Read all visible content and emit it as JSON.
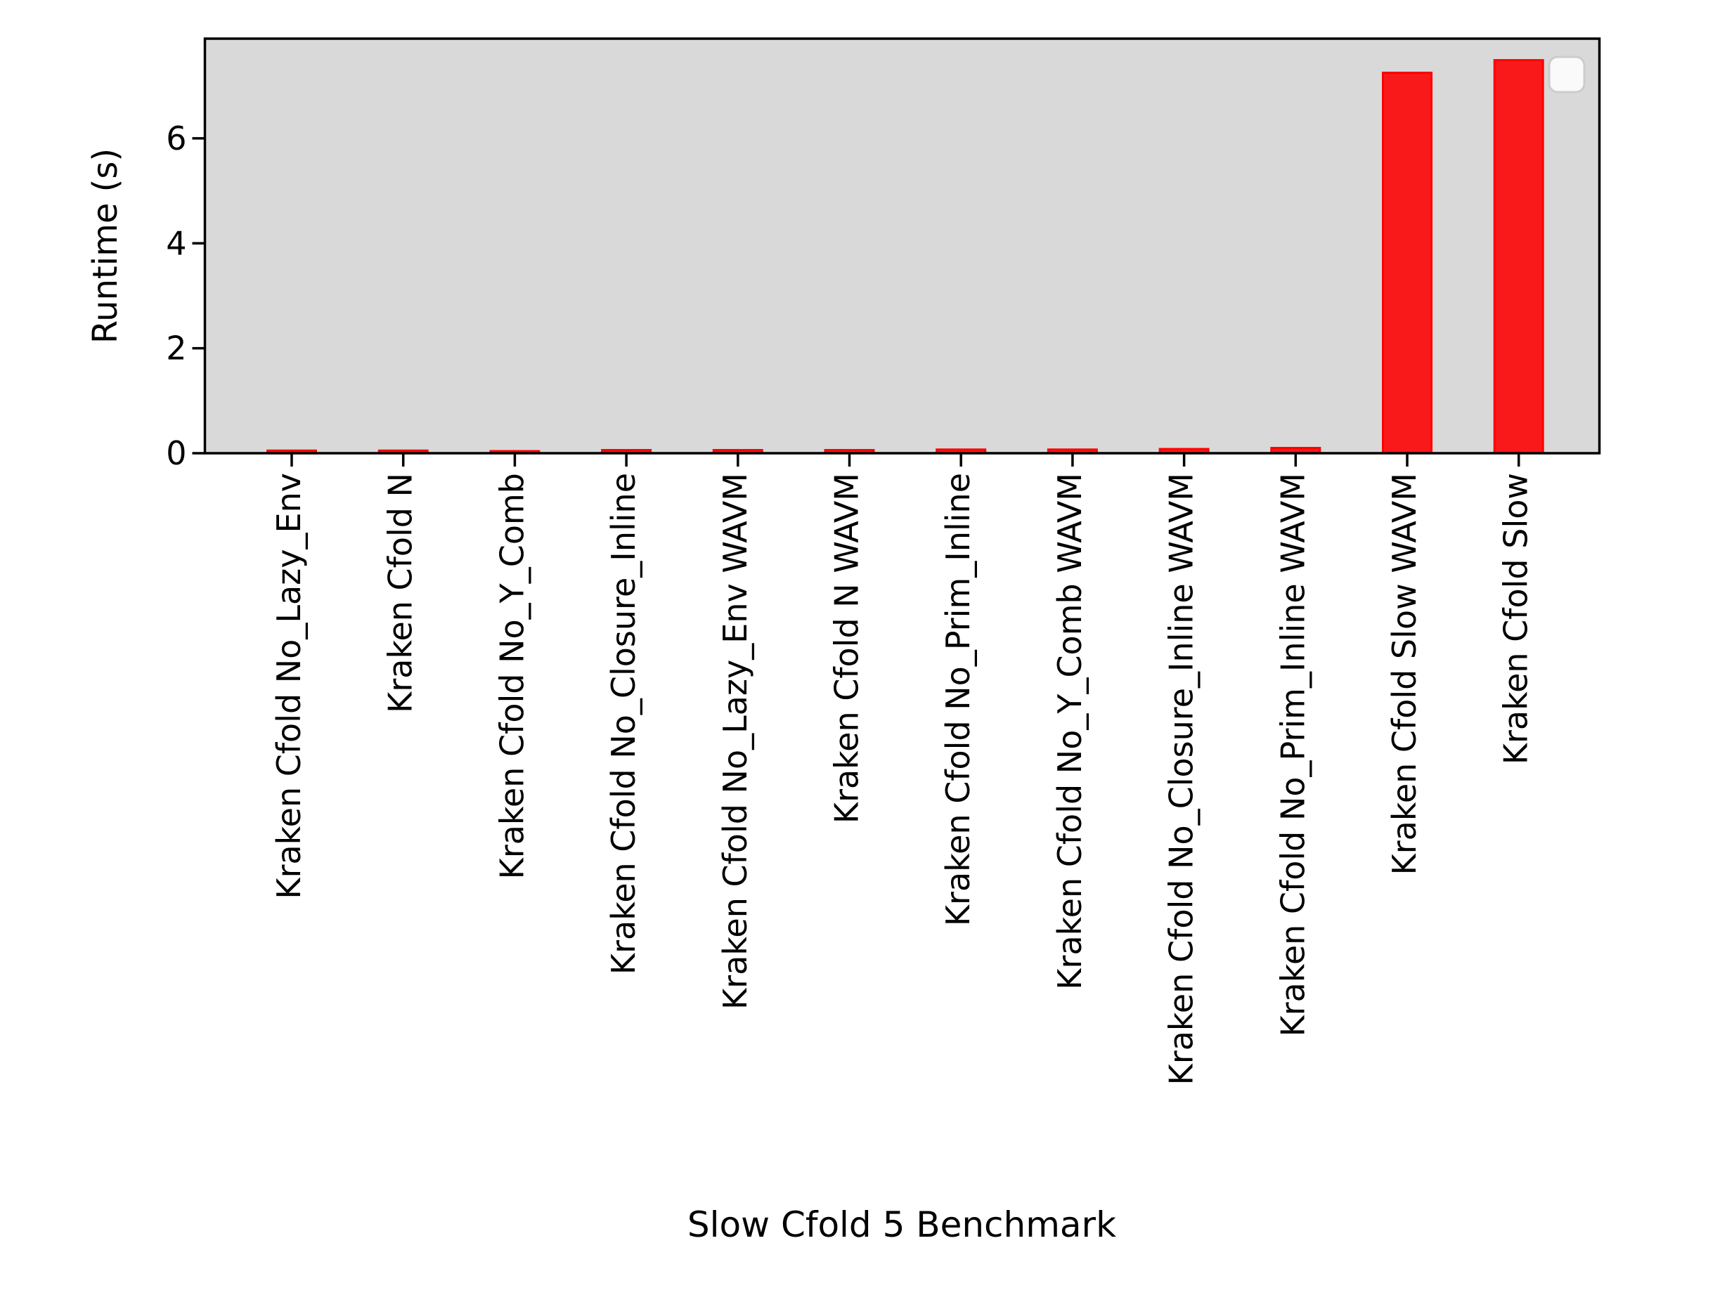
{
  "figure": {
    "background": "#ffffff",
    "plot_background": "#d9d9d9",
    "spine_color": "#000000"
  },
  "chart_data": {
    "type": "bar",
    "xlabel": "Slow Cfold 5 Benchmark",
    "ylabel": "Runtime (s)",
    "categories": [
      "Kraken Cfold No_Lazy_Env",
      "Kraken Cfold N",
      "Kraken Cfold No_Y_Comb",
      "Kraken Cfold No_Closure_Inline",
      "Kraken Cfold No_Lazy_Env WAVM",
      "Kraken Cfold N WAVM",
      "Kraken Cfold No_Prim_Inline",
      "Kraken Cfold No_Y_Comb WAVM",
      "Kraken Cfold No_Closure_Inline WAVM",
      "Kraken Cfold No_Prim_Inline WAVM",
      "Kraken Cfold Slow WAVM",
      "Kraken Cfold Slow"
    ],
    "values": [
      0.05,
      0.05,
      0.04,
      0.06,
      0.06,
      0.06,
      0.07,
      0.07,
      0.08,
      0.1,
      7.25,
      7.49
    ],
    "yticks": [
      0,
      2,
      4,
      6
    ],
    "ylim": [
      0,
      7.9
    ],
    "grid": false,
    "bar_color": "#f9191b",
    "bar_edge_color": "#ff0000",
    "legend": {
      "visible": true,
      "position": "upper right",
      "entries": []
    }
  }
}
